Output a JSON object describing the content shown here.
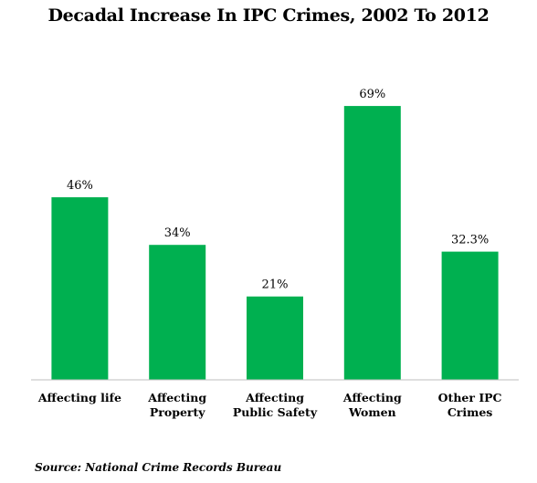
{
  "chart_data": {
    "type": "bar",
    "title": "Decadal Increase In IPC Crimes, 2002 To 2012",
    "categories": [
      [
        "Affecting life"
      ],
      [
        "Affecting",
        "Property"
      ],
      [
        "Affecting",
        "Public Safety"
      ],
      [
        "Affecting",
        "Women"
      ],
      [
        "Other IPC",
        "Crimes"
      ]
    ],
    "values": [
      46,
      34,
      21,
      69,
      32.3
    ],
    "data_labels": [
      "46%",
      "34%",
      "21%",
      "69%",
      "32.3%"
    ],
    "xlabel": "",
    "ylabel": "",
    "ylim": [
      0,
      75
    ],
    "grid": false,
    "legend": "none",
    "bar_color": "#00b050"
  },
  "source": "Source: National Crime Records Bureau"
}
